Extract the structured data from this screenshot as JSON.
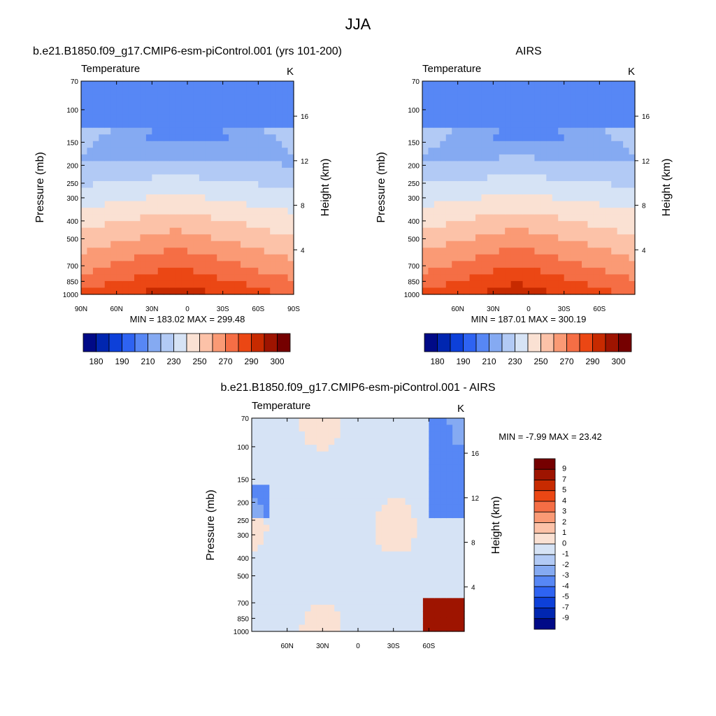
{
  "figure": {
    "title": "JJA"
  },
  "chart_data": [
    {
      "type": "heatmap",
      "title": "b.e21.B1850.f09_g17.CMIP6-esm-piControl.001 (yrs 101-200)",
      "left_string": "Temperature",
      "right_string": "K",
      "ylabel": "Pressure (mb)",
      "ylabel_right": "Height (km)",
      "xticks": [
        "90N",
        "60N",
        "30N",
        "0",
        "30S",
        "60S",
        "90S"
      ],
      "xtick_values": [
        90,
        60,
        30,
        0,
        -30,
        -60,
        -90
      ],
      "xlim": [
        90,
        -90
      ],
      "yticks": [
        "70",
        "100",
        "150",
        "200",
        "250",
        "300",
        "400",
        "500",
        "700",
        "850",
        "1000"
      ],
      "ytick_values": [
        70,
        100,
        150,
        200,
        250,
        300,
        400,
        500,
        700,
        850,
        1000
      ],
      "ylim": [
        1000,
        70
      ],
      "yscale": "log",
      "right_ticks": [
        "4",
        "8",
        "12",
        "16"
      ],
      "right_tick_values": [
        4,
        8,
        12,
        16
      ],
      "stats": "MIN = 183.02  MAX = 299.48",
      "min": 183.02,
      "max": 299.48,
      "colorbar": {
        "orientation": "horizontal",
        "labels": [
          "180",
          "190",
          "210",
          "230",
          "250",
          "270",
          "290",
          "300"
        ],
        "colors": [
          "#000a87",
          "#0026b0",
          "#0d40d9",
          "#2e63f2",
          "#5787f5",
          "#85aaf2",
          "#b2caf5",
          "#d6e3f5",
          "#fae1d3",
          "#fcc2a8",
          "#fa9a75",
          "#f56e45",
          "#eb4714",
          "#c72a00",
          "#9e1400",
          "#750000"
        ]
      },
      "notes": "Coldest near 30N-0 at 100 mb; warmest near surface 30N-0"
    },
    {
      "type": "heatmap",
      "title": "AIRS",
      "left_string": "Temperature",
      "right_string": "K",
      "ylabel": "Pressure (mb)",
      "ylabel_right": "Height (km)",
      "xticks": [
        "60N",
        "30N",
        "0",
        "30S",
        "60S"
      ],
      "xtick_values": [
        60,
        30,
        0,
        -30,
        -60
      ],
      "xlim": [
        90,
        -90
      ],
      "yticks": [
        "70",
        "100",
        "150",
        "200",
        "250",
        "300",
        "400",
        "500",
        "700",
        "850",
        "1000"
      ],
      "ytick_values": [
        70,
        100,
        150,
        200,
        250,
        300,
        400,
        500,
        700,
        850,
        1000
      ],
      "ylim": [
        1000,
        70
      ],
      "yscale": "log",
      "right_ticks": [
        "4",
        "8",
        "12",
        "16"
      ],
      "right_tick_values": [
        4,
        8,
        12,
        16
      ],
      "stats": "MIN = 187.01  MAX = 300.19",
      "min": 187.01,
      "max": 300.19,
      "colorbar": {
        "orientation": "horizontal",
        "labels": [
          "180",
          "190",
          "210",
          "230",
          "250",
          "270",
          "290",
          "300"
        ],
        "colors": [
          "#000a87",
          "#0026b0",
          "#0d40d9",
          "#2e63f2",
          "#5787f5",
          "#85aaf2",
          "#b2caf5",
          "#d6e3f5",
          "#fae1d3",
          "#fcc2a8",
          "#fa9a75",
          "#f56e45",
          "#eb4714",
          "#c72a00",
          "#9e1400",
          "#750000"
        ]
      }
    },
    {
      "type": "heatmap",
      "title": "b.e21.B1850.f09_g17.CMIP6-esm-piControl.001 - AIRS",
      "left_string": "Temperature",
      "right_string": "K",
      "ylabel": "Pressure (mb)",
      "ylabel_right": "Height (km)",
      "xticks": [
        "60N",
        "30N",
        "0",
        "30S",
        "60S"
      ],
      "xtick_values": [
        60,
        30,
        0,
        -30,
        -60
      ],
      "xlim": [
        90,
        -90
      ],
      "yticks": [
        "70",
        "100",
        "150",
        "200",
        "250",
        "300",
        "400",
        "500",
        "700",
        "850",
        "1000"
      ],
      "ytick_values": [
        70,
        100,
        150,
        200,
        250,
        300,
        400,
        500,
        700,
        850,
        1000
      ],
      "ylim": [
        1000,
        70
      ],
      "yscale": "log",
      "right_ticks": [
        "4",
        "8",
        "12",
        "16"
      ],
      "right_tick_values": [
        4,
        8,
        12,
        16
      ],
      "stats": "MIN =  -7.99  MAX =  23.42",
      "min": -7.99,
      "max": 23.42,
      "colorbar": {
        "orientation": "vertical",
        "labels": [
          "9",
          "7",
          "5",
          "4",
          "3",
          "2",
          "1",
          "0",
          "-1",
          "-2",
          "-3",
          "-4",
          "-5",
          "-7",
          "-9"
        ],
        "colors": [
          "#750000",
          "#9e1400",
          "#c72a00",
          "#eb4714",
          "#f56e45",
          "#fa9a75",
          "#fcc2a8",
          "#fae1d3",
          "#d6e3f5",
          "#b2caf5",
          "#85aaf2",
          "#5787f5",
          "#2e63f2",
          "#0d40d9",
          "#0026b0",
          "#000a87"
        ]
      }
    }
  ]
}
